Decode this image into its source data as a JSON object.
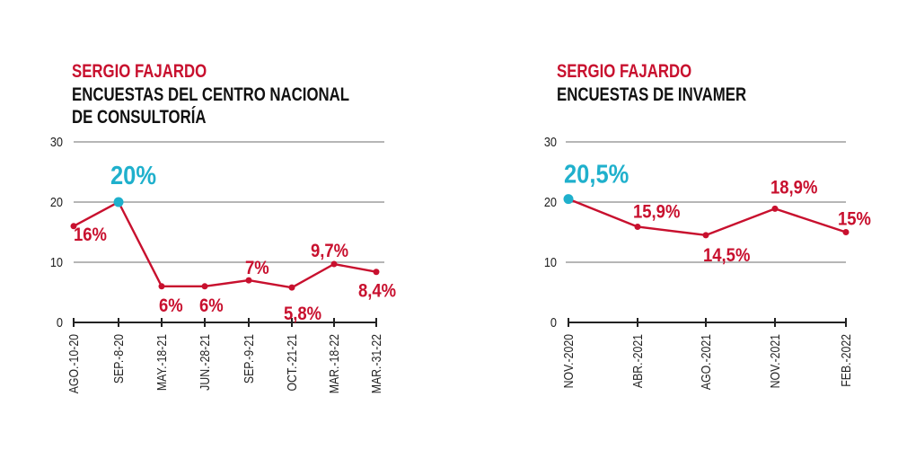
{
  "chart_data": [
    {
      "type": "line",
      "subtitle": "SERGIO FAJARDO",
      "title_lines": [
        "ENCUESTAS DEL CENTRO NACIONAL",
        "DE CONSULTORÍA"
      ],
      "categories": [
        "AGO.-10-20",
        "SEP.-8-20",
        "MAY.-18-21",
        "JUN.-28-21",
        "SEP.-9-21",
        "OCT.-21-21",
        "MAR.-18-22",
        "MAR.-31-22"
      ],
      "values": [
        16,
        20,
        6,
        6,
        7,
        5.8,
        9.7,
        8.4
      ],
      "labels": [
        "16%",
        "20%",
        "6%",
        "6%",
        "7%",
        "5,8%",
        "9,7%",
        "8,4%"
      ],
      "highlight_index": 1,
      "yticks": [
        0,
        10,
        20,
        30
      ],
      "ylim": [
        0,
        30
      ],
      "grid": true,
      "line_color": "#c8102e",
      "highlight_color": "#1fb0cc"
    },
    {
      "type": "line",
      "subtitle": "SERGIO FAJARDO",
      "title_lines": [
        "ENCUESTAS DE INVAMER"
      ],
      "categories": [
        "NOV.-2020",
        "ABR.-2021",
        "AGO.-2021",
        "NOV.-2021",
        "FEB.-2022"
      ],
      "values": [
        20.5,
        15.9,
        14.5,
        18.9,
        15
      ],
      "labels": [
        "20,5%",
        "15,9%",
        "14,5%",
        "18,9%",
        "15%"
      ],
      "highlight_index": 0,
      "yticks": [
        0,
        10,
        20,
        30
      ],
      "ylim": [
        0,
        30
      ],
      "grid": true,
      "line_color": "#c8102e",
      "highlight_color": "#1fb0cc"
    }
  ]
}
